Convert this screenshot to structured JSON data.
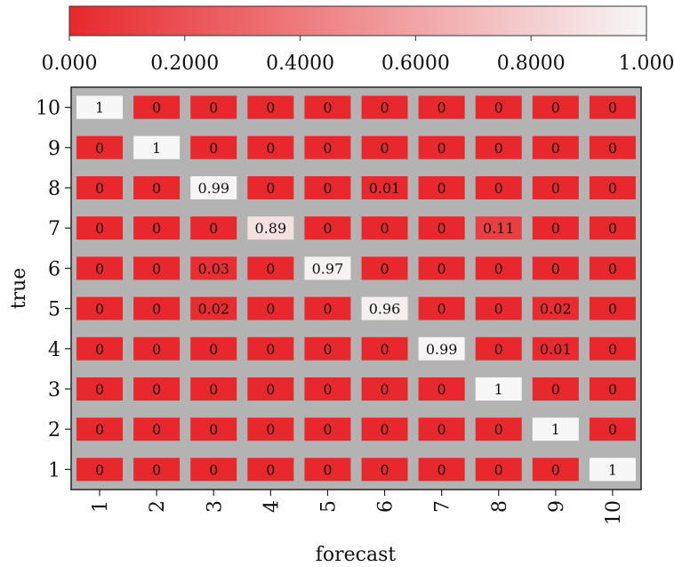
{
  "chart_data": {
    "type": "heatmap",
    "xlabel": "forecast",
    "ylabel": "true",
    "x_categories": [
      "1",
      "2",
      "3",
      "4",
      "5",
      "6",
      "7",
      "8",
      "9",
      "10"
    ],
    "y_categories": [
      "10",
      "9",
      "8",
      "7",
      "6",
      "5",
      "4",
      "3",
      "2",
      "1"
    ],
    "values": [
      [
        1,
        0,
        0,
        0,
        0,
        0,
        0,
        0,
        0,
        0
      ],
      [
        0,
        1,
        0,
        0,
        0,
        0,
        0,
        0,
        0,
        0
      ],
      [
        0,
        0,
        0.99,
        0,
        0,
        0.01,
        0,
        0,
        0,
        0
      ],
      [
        0,
        0,
        0,
        0.89,
        0,
        0,
        0,
        0.11,
        0,
        0
      ],
      [
        0,
        0,
        0.03,
        0,
        0.97,
        0,
        0,
        0,
        0,
        0
      ],
      [
        0,
        0,
        0.02,
        0,
        0,
        0.96,
        0,
        0,
        0.02,
        0
      ],
      [
        0,
        0,
        0,
        0,
        0,
        0,
        0.99,
        0,
        0.01,
        0
      ],
      [
        0,
        0,
        0,
        0,
        0,
        0,
        0,
        1,
        0,
        0
      ],
      [
        0,
        0,
        0,
        0,
        0,
        0,
        0,
        0,
        1,
        0
      ],
      [
        0,
        0,
        0,
        0,
        0,
        0,
        0,
        0,
        0,
        1
      ]
    ],
    "colorbar": {
      "range": [
        0,
        1
      ],
      "tick_labels": [
        "0.000",
        "0.2000",
        "0.4000",
        "0.6000",
        "0.8000",
        "1.000"
      ],
      "tick_values": [
        0,
        0.2,
        0.4,
        0.6,
        0.8,
        1.0
      ],
      "low_color": "#e8282c",
      "high_color": "#f7f7f7"
    },
    "background_color": "#b3b3b3",
    "grid": false
  }
}
